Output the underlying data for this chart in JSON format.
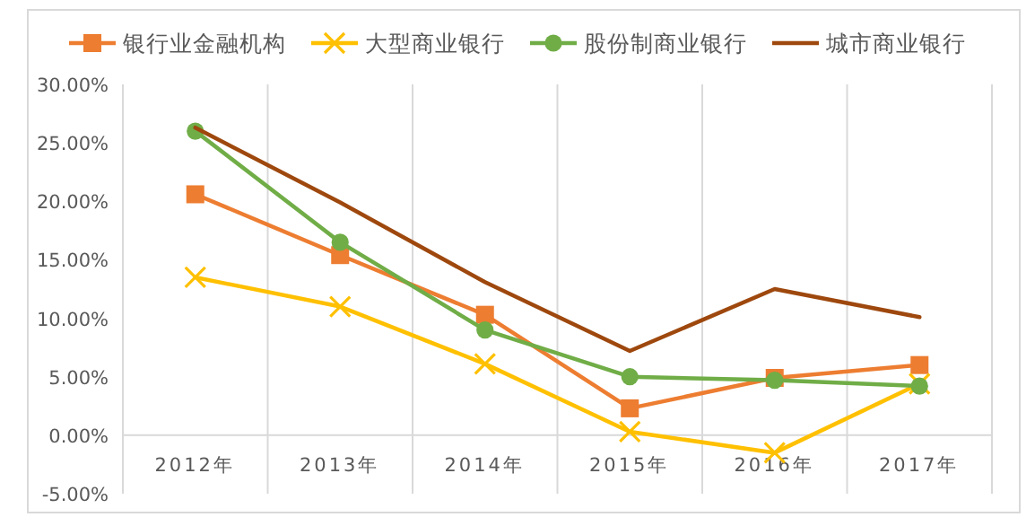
{
  "chart_data": {
    "type": "line",
    "categories": [
      "2012年",
      "2013年",
      "2014年",
      "2015年",
      "2016年",
      "2017年"
    ],
    "series": [
      {
        "name": "银行业金融机构",
        "color": "#ed7d31",
        "marker": "square",
        "values": [
          20.6,
          15.4,
          10.3,
          2.3,
          4.9,
          6.0
        ]
      },
      {
        "name": "大型商业银行",
        "color": "#ffc000",
        "marker": "cross",
        "values": [
          13.5,
          11.0,
          6.1,
          0.3,
          -1.5,
          4.4
        ]
      },
      {
        "name": "股份制商业银行",
        "color": "#70ad47",
        "marker": "circle",
        "values": [
          26.0,
          16.5,
          9.0,
          5.0,
          4.7,
          4.2
        ]
      },
      {
        "name": "城市商业银行",
        "color": "#9e480e",
        "marker": "none",
        "values": [
          26.3,
          19.9,
          13.1,
          7.2,
          12.5,
          10.1
        ]
      }
    ],
    "ylim": [
      -5,
      30
    ],
    "yticks": [
      {
        "value": -5,
        "label": "-5.00%"
      },
      {
        "value": 0,
        "label": "0.00%"
      },
      {
        "value": 5,
        "label": "5.00%"
      },
      {
        "value": 10,
        "label": "10.00%"
      },
      {
        "value": 15,
        "label": "15.00%"
      },
      {
        "value": 20,
        "label": "20.00%"
      },
      {
        "value": 25,
        "label": "25.00%"
      },
      {
        "value": 30,
        "label": "30.00%"
      }
    ],
    "grid": "x",
    "legend": "top"
  }
}
